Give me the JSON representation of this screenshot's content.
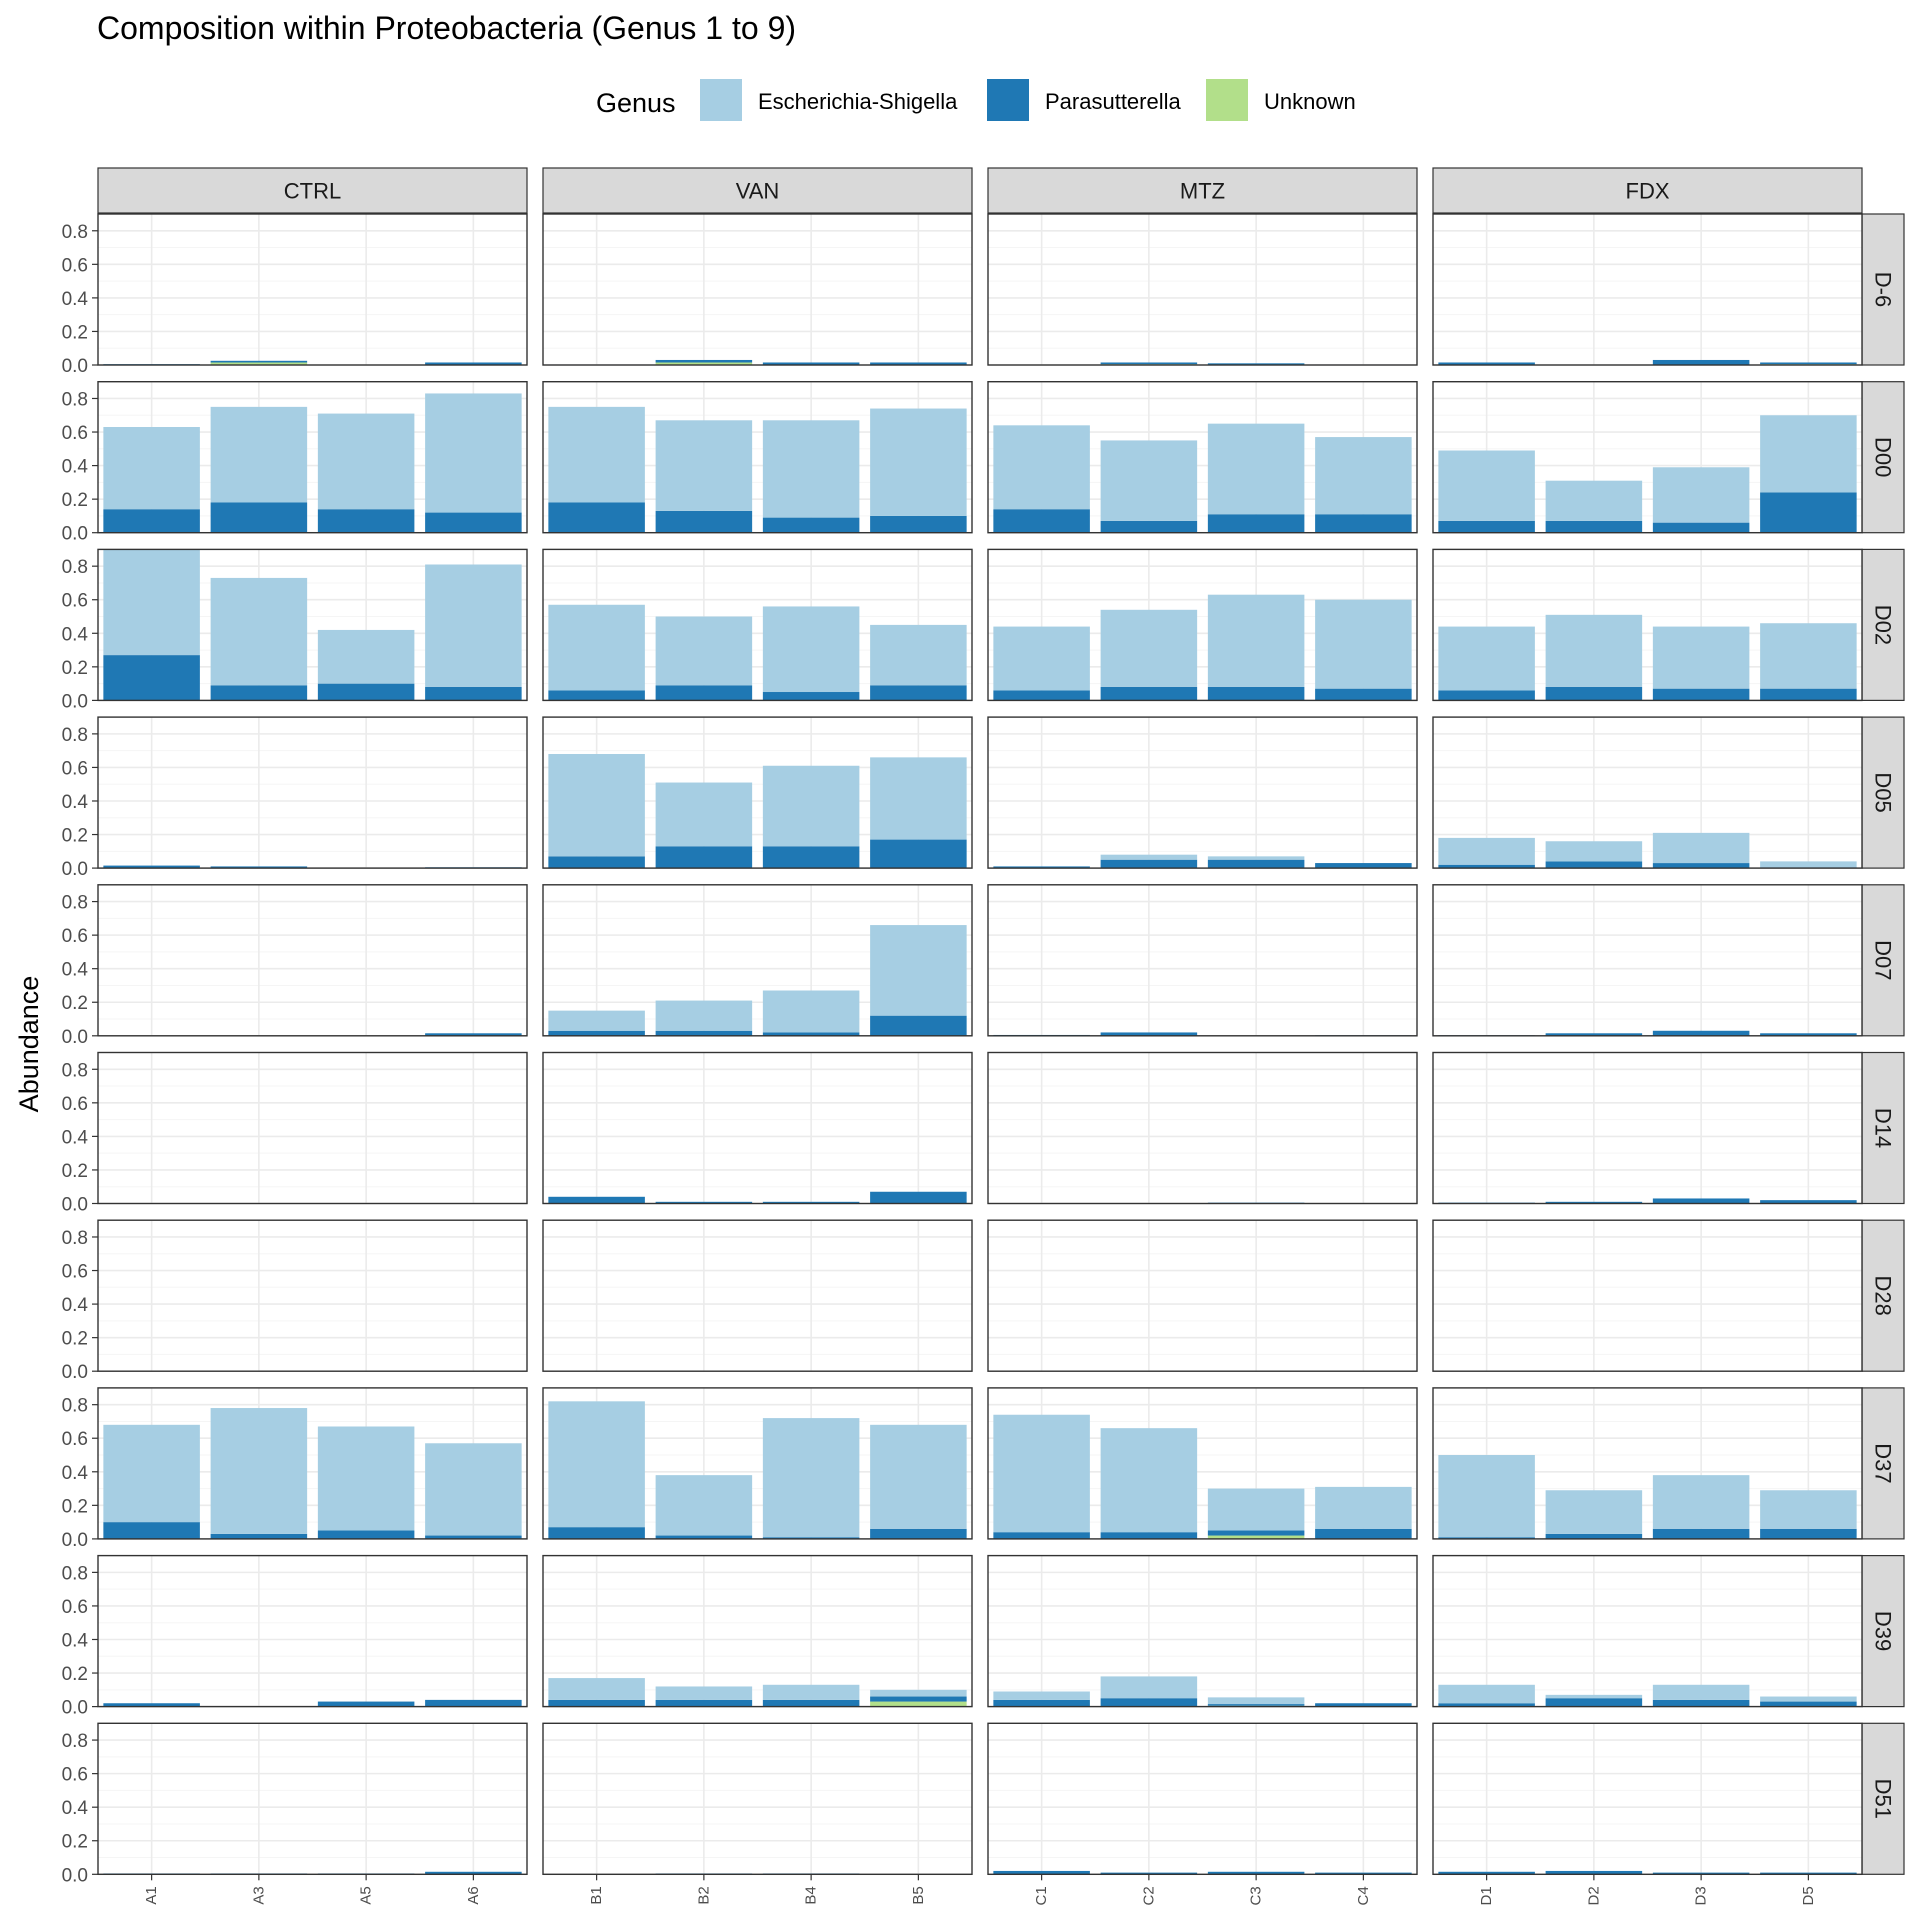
{
  "colors": {
    "escherichia": "#A6CEE3",
    "parasutterella": "#1F78B4",
    "unknown": "#B2DF8A",
    "strip_fill": "#D9D9D9",
    "panel_border": "#333333",
    "grid_major": "#EBEBEB",
    "grid_minor": "#F5F5F5",
    "text": "#000000",
    "axis_text": "#4D4D4D"
  },
  "chart_data": {
    "type": "bar",
    "stacked": true,
    "title": "Composition within Proteobacteria (Genus 1 to 9)",
    "ylabel": "Abundance",
    "xlabel": "",
    "ylim": [
      0,
      0.9
    ],
    "y_ticks": [
      "0.0",
      "0.2",
      "0.4",
      "0.6",
      "0.8"
    ],
    "y_tick_values": [
      0,
      0.2,
      0.4,
      0.6,
      0.8
    ],
    "legend": {
      "title": "Genus",
      "position": "top",
      "entries": [
        "Escherichia-Shigella",
        "Parasutterella",
        "Unknown"
      ]
    },
    "facet_columns": [
      "CTRL",
      "VAN",
      "MTZ",
      "FDX"
    ],
    "facet_rows": [
      "D-6",
      "D00",
      "D02",
      "D05",
      "D07",
      "D14",
      "D28",
      "D37",
      "D39",
      "D51"
    ],
    "categories": {
      "CTRL": [
        "A1",
        "A3",
        "A5",
        "A6"
      ],
      "VAN": [
        "B1",
        "B2",
        "B4",
        "B5"
      ],
      "MTZ": [
        "C1",
        "C2",
        "C3",
        "C4"
      ],
      "FDX": [
        "D1",
        "D2",
        "D3",
        "D5"
      ]
    },
    "values": {
      "D-6": {
        "CTRL": {
          "unknown": [
            0,
            0.015,
            0,
            0
          ],
          "parasutterella": [
            0.005,
            0.01,
            0,
            0.015
          ],
          "escherichia": [
            0,
            0,
            0,
            0
          ]
        },
        "VAN": {
          "unknown": [
            0,
            0.015,
            0,
            0
          ],
          "parasutterella": [
            0.003,
            0.015,
            0.015,
            0.015
          ],
          "escherichia": [
            0,
            0,
            0,
            0
          ]
        },
        "MTZ": {
          "unknown": [
            0,
            0.005,
            0,
            0
          ],
          "parasutterella": [
            0,
            0.01,
            0.01,
            0.003
          ],
          "escherichia": [
            0,
            0,
            0,
            0
          ]
        },
        "FDX": {
          "unknown": [
            0,
            0,
            0,
            0.005
          ],
          "parasutterella": [
            0.015,
            0,
            0.03,
            0.01
          ],
          "escherichia": [
            0,
            0,
            0,
            0
          ]
        }
      },
      "D00": {
        "CTRL": {
          "unknown": [
            0,
            0,
            0,
            0
          ],
          "parasutterella": [
            0.14,
            0.18,
            0.14,
            0.12
          ],
          "escherichia": [
            0.49,
            0.57,
            0.57,
            0.71
          ]
        },
        "VAN": {
          "unknown": [
            0,
            0,
            0,
            0
          ],
          "parasutterella": [
            0.18,
            0.13,
            0.09,
            0.1
          ],
          "escherichia": [
            0.57,
            0.54,
            0.58,
            0.64
          ]
        },
        "MTZ": {
          "unknown": [
            0,
            0,
            0,
            0
          ],
          "parasutterella": [
            0.14,
            0.07,
            0.11,
            0.11
          ],
          "escherichia": [
            0.5,
            0.48,
            0.54,
            0.46
          ]
        },
        "FDX": {
          "unknown": [
            0,
            0,
            0,
            0
          ],
          "parasutterella": [
            0.07,
            0.07,
            0.06,
            0.24
          ],
          "escherichia": [
            0.42,
            0.24,
            0.33,
            0.46
          ]
        }
      },
      "D02": {
        "CTRL": {
          "unknown": [
            0,
            0,
            0,
            0
          ],
          "parasutterella": [
            0.27,
            0.09,
            0.1,
            0.08
          ],
          "escherichia": [
            0.63,
            0.64,
            0.32,
            0.73
          ]
        },
        "VAN": {
          "unknown": [
            0,
            0,
            0,
            0
          ],
          "parasutterella": [
            0.06,
            0.09,
            0.05,
            0.09
          ],
          "escherichia": [
            0.51,
            0.41,
            0.51,
            0.36
          ]
        },
        "MTZ": {
          "unknown": [
            0,
            0,
            0,
            0
          ],
          "parasutterella": [
            0.06,
            0.08,
            0.08,
            0.07
          ],
          "escherichia": [
            0.38,
            0.46,
            0.55,
            0.53
          ]
        },
        "FDX": {
          "unknown": [
            0,
            0,
            0,
            0
          ],
          "parasutterella": [
            0.06,
            0.08,
            0.07,
            0.07
          ],
          "escherichia": [
            0.38,
            0.43,
            0.37,
            0.39
          ]
        }
      },
      "D05": {
        "CTRL": {
          "unknown": [
            0,
            0,
            0,
            0
          ],
          "parasutterella": [
            0.015,
            0.01,
            0,
            0.005
          ],
          "escherichia": [
            0,
            0,
            0,
            0
          ]
        },
        "VAN": {
          "unknown": [
            0,
            0,
            0,
            0
          ],
          "parasutterella": [
            0.07,
            0.13,
            0.13,
            0.17
          ],
          "escherichia": [
            0.61,
            0.38,
            0.48,
            0.49
          ]
        },
        "MTZ": {
          "unknown": [
            0,
            0,
            0,
            0
          ],
          "parasutterella": [
            0.01,
            0.05,
            0.05,
            0.03
          ],
          "escherichia": [
            0,
            0.03,
            0.02,
            0
          ]
        },
        "FDX": {
          "unknown": [
            0,
            0,
            0,
            0
          ],
          "parasutterella": [
            0.02,
            0.04,
            0.03,
            0.005
          ],
          "escherichia": [
            0.16,
            0.12,
            0.18,
            0.035
          ]
        }
      },
      "D07": {
        "CTRL": {
          "unknown": [
            0,
            0,
            0,
            0
          ],
          "parasutterella": [
            0,
            0,
            0,
            0.015
          ],
          "escherichia": [
            0,
            0,
            0,
            0
          ]
        },
        "VAN": {
          "unknown": [
            0,
            0,
            0,
            0
          ],
          "parasutterella": [
            0.03,
            0.03,
            0.02,
            0.12
          ],
          "escherichia": [
            0.12,
            0.18,
            0.25,
            0.54
          ]
        },
        "MTZ": {
          "unknown": [
            0,
            0,
            0,
            0
          ],
          "parasutterella": [
            0.005,
            0.02,
            0,
            0.003
          ],
          "escherichia": [
            0,
            0,
            0,
            0
          ]
        },
        "FDX": {
          "unknown": [
            0,
            0,
            0,
            0
          ],
          "parasutterella": [
            0.003,
            0.015,
            0.03,
            0.015
          ],
          "escherichia": [
            0,
            0,
            0,
            0
          ]
        }
      },
      "D14": {
        "CTRL": {
          "unknown": [
            0,
            0,
            0,
            0
          ],
          "parasutterella": [
            0,
            0,
            0,
            0
          ],
          "escherichia": [
            0,
            0,
            0,
            0
          ]
        },
        "VAN": {
          "unknown": [
            0,
            0,
            0,
            0
          ],
          "parasutterella": [
            0.04,
            0.01,
            0.01,
            0.07
          ],
          "escherichia": [
            0,
            0,
            0,
            0
          ]
        },
        "MTZ": {
          "unknown": [
            0,
            0,
            0,
            0
          ],
          "parasutterella": [
            0,
            0,
            0.005,
            0
          ],
          "escherichia": [
            0,
            0,
            0,
            0
          ]
        },
        "FDX": {
          "unknown": [
            0,
            0,
            0,
            0
          ],
          "parasutterella": [
            0.005,
            0.01,
            0.03,
            0.02
          ],
          "escherichia": [
            0,
            0,
            0,
            0
          ]
        }
      },
      "D28": {
        "CTRL": {
          "unknown": [
            0,
            0,
            0,
            0
          ],
          "parasutterella": [
            0,
            0,
            0,
            0
          ],
          "escherichia": [
            0,
            0,
            0,
            0
          ]
        },
        "VAN": {
          "unknown": [
            0,
            0,
            0,
            0
          ],
          "parasutterella": [
            0,
            0,
            0,
            0
          ],
          "escherichia": [
            0,
            0,
            0,
            0
          ]
        },
        "MTZ": {
          "unknown": [
            0,
            0,
            0,
            0
          ],
          "parasutterella": [
            0,
            0,
            0,
            0
          ],
          "escherichia": [
            0,
            0,
            0,
            0
          ]
        },
        "FDX": {
          "unknown": [
            0,
            0,
            0,
            0
          ],
          "parasutterella": [
            0,
            0,
            0,
            0
          ],
          "escherichia": [
            0,
            0,
            0,
            0
          ]
        }
      },
      "D37": {
        "CTRL": {
          "unknown": [
            0,
            0,
            0,
            0
          ],
          "parasutterella": [
            0.1,
            0.03,
            0.05,
            0.02
          ],
          "escherichia": [
            0.58,
            0.75,
            0.62,
            0.55
          ]
        },
        "VAN": {
          "unknown": [
            0,
            0,
            0,
            0
          ],
          "parasutterella": [
            0.07,
            0.02,
            0.01,
            0.06
          ],
          "escherichia": [
            0.75,
            0.36,
            0.71,
            0.62
          ]
        },
        "MTZ": {
          "unknown": [
            0,
            0,
            0.02,
            0
          ],
          "parasutterella": [
            0.04,
            0.04,
            0.03,
            0.06
          ],
          "escherichia": [
            0.7,
            0.62,
            0.25,
            0.25
          ]
        },
        "FDX": {
          "unknown": [
            0,
            0,
            0,
            0
          ],
          "parasutterella": [
            0.01,
            0.03,
            0.06,
            0.06
          ],
          "escherichia": [
            0.49,
            0.26,
            0.32,
            0.23
          ]
        }
      },
      "D39": {
        "CTRL": {
          "unknown": [
            0,
            0,
            0,
            0
          ],
          "parasutterella": [
            0.02,
            0,
            0.03,
            0.04
          ],
          "escherichia": [
            0,
            0,
            0,
            0
          ]
        },
        "VAN": {
          "unknown": [
            0,
            0,
            0,
            0.03
          ],
          "parasutterella": [
            0.04,
            0.04,
            0.04,
            0.03
          ],
          "escherichia": [
            0.13,
            0.08,
            0.09,
            0.04
          ]
        },
        "MTZ": {
          "unknown": [
            0,
            0,
            0.005,
            0
          ],
          "parasutterella": [
            0.04,
            0.05,
            0.01,
            0.02
          ],
          "escherichia": [
            0.05,
            0.13,
            0.04,
            0
          ]
        },
        "FDX": {
          "unknown": [
            0,
            0,
            0,
            0
          ],
          "parasutterella": [
            0.02,
            0.05,
            0.04,
            0.03
          ],
          "escherichia": [
            0.11,
            0.02,
            0.09,
            0.03
          ]
        }
      },
      "D51": {
        "CTRL": {
          "unknown": [
            0,
            0,
            0,
            0
          ],
          "parasutterella": [
            0.005,
            0.005,
            0.005,
            0.015
          ],
          "escherichia": [
            0,
            0,
            0,
            0
          ]
        },
        "VAN": {
          "unknown": [
            0,
            0,
            0,
            0
          ],
          "parasutterella": [
            0,
            0.005,
            0.005,
            0
          ],
          "escherichia": [
            0,
            0,
            0,
            0
          ]
        },
        "MTZ": {
          "unknown": [
            0,
            0,
            0,
            0
          ],
          "parasutterella": [
            0.02,
            0.01,
            0.015,
            0.01
          ],
          "escherichia": [
            0,
            0,
            0,
            0
          ]
        },
        "FDX": {
          "unknown": [
            0,
            0,
            0,
            0
          ],
          "parasutterella": [
            0.015,
            0.02,
            0.01,
            0.01
          ],
          "escherichia": [
            0,
            0,
            0,
            0
          ]
        }
      }
    }
  }
}
